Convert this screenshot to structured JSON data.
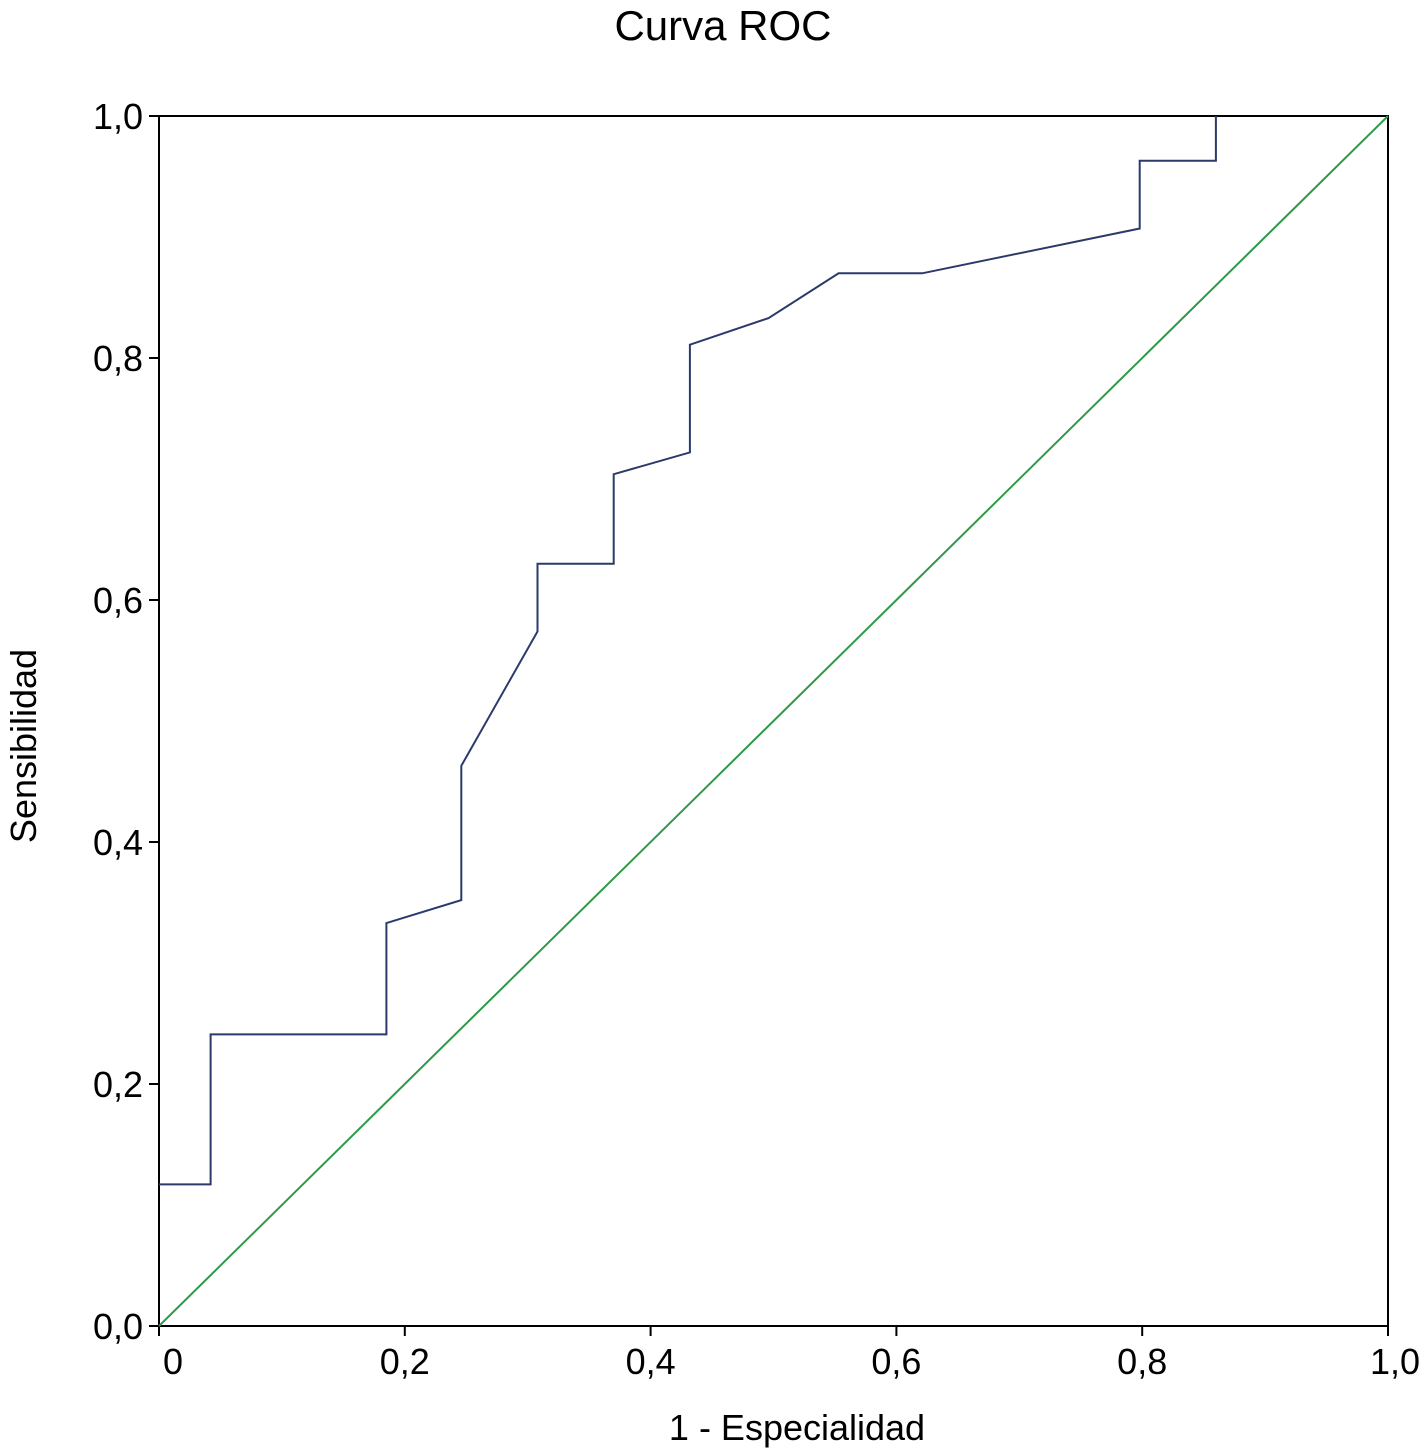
{
  "chart_data": {
    "type": "line",
    "title": "Curva ROC",
    "xlabel": "1 - Especialidad",
    "ylabel": "Sensibilidad",
    "xlim": [
      0,
      1
    ],
    "ylim": [
      0,
      1
    ],
    "x_ticks": [
      {
        "value": 0,
        "label": "0"
      },
      {
        "value": 0.2,
        "label": "0,2"
      },
      {
        "value": 0.4,
        "label": "0,4"
      },
      {
        "value": 0.6,
        "label": "0,6"
      },
      {
        "value": 0.8,
        "label": "0,8"
      },
      {
        "value": 1.0,
        "label": "1,0"
      }
    ],
    "y_ticks": [
      {
        "value": 0,
        "label": "0,0"
      },
      {
        "value": 0.2,
        "label": "0,2"
      },
      {
        "value": 0.4,
        "label": "0,4"
      },
      {
        "value": 0.6,
        "label": "0,6"
      },
      {
        "value": 0.8,
        "label": "0,8"
      },
      {
        "value": 1.0,
        "label": "1,0"
      }
    ],
    "grid": false,
    "legend": "none",
    "series": [
      {
        "role": "roc-curve",
        "color": "#2b3a6b",
        "points": [
          [
            0.0,
            0.117
          ],
          [
            0.042,
            0.117
          ],
          [
            0.042,
            0.241
          ],
          [
            0.185,
            0.241
          ],
          [
            0.185,
            0.333
          ],
          [
            0.246,
            0.352
          ],
          [
            0.246,
            0.463
          ],
          [
            0.308,
            0.574
          ],
          [
            0.308,
            0.63
          ],
          [
            0.37,
            0.63
          ],
          [
            0.37,
            0.704
          ],
          [
            0.432,
            0.722
          ],
          [
            0.432,
            0.811
          ],
          [
            0.496,
            0.833
          ],
          [
            0.553,
            0.87
          ],
          [
            0.621,
            0.87
          ],
          [
            0.798,
            0.907
          ],
          [
            0.798,
            0.963
          ],
          [
            0.86,
            0.963
          ],
          [
            0.86,
            1.0
          ]
        ]
      },
      {
        "role": "reference-line",
        "color": "#2e9a48",
        "points": [
          [
            0,
            0
          ],
          [
            1,
            1
          ]
        ]
      }
    ]
  }
}
